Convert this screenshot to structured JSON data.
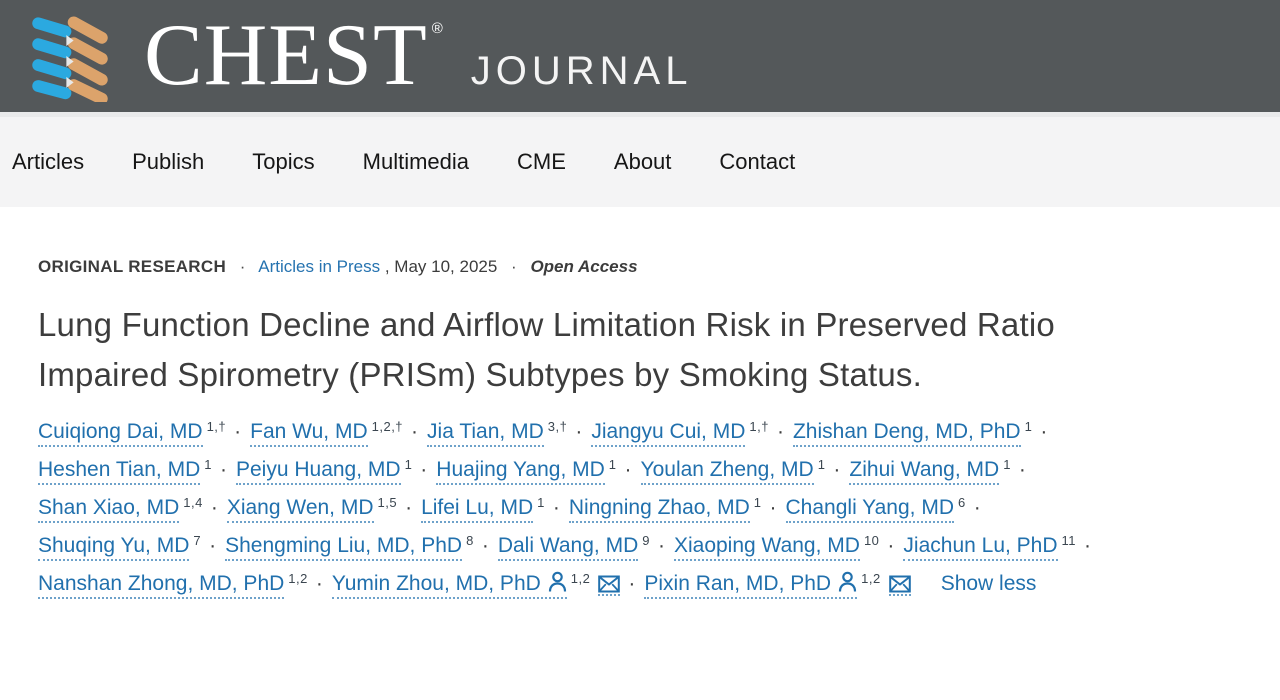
{
  "header": {
    "journal_name": "CHEST",
    "registered_mark": "®",
    "journal_suffix": "JOURNAL"
  },
  "nav": {
    "items": [
      "Articles",
      "Publish",
      "Topics",
      "Multimedia",
      "CME",
      "About",
      "Contact"
    ]
  },
  "article": {
    "meta": {
      "category": "ORIGINAL RESEARCH",
      "separator": "·",
      "in_press_link": "Articles in Press",
      "date_suffix": ", May 10, 2025",
      "access": "Open Access"
    },
    "title": "Lung Function Decline and Airflow Limitation Risk in Preserved Ratio Impaired Spirometry (PRISm) Subtypes by Smoking Status.",
    "author_separator": "·",
    "authors": [
      {
        "name": "Cuiqiong Dai, MD",
        "sup": "1,†"
      },
      {
        "name": "Fan Wu, MD",
        "sup": "1,2,†"
      },
      {
        "name": "Jia Tian, MD",
        "sup": "3,†"
      },
      {
        "name": "Jiangyu Cui, MD",
        "sup": "1,†"
      },
      {
        "name": "Zhishan Deng, MD, PhD",
        "sup": "1"
      },
      {
        "name": "Heshen Tian, MD",
        "sup": "1"
      },
      {
        "name": "Peiyu Huang, MD",
        "sup": "1"
      },
      {
        "name": "Huajing Yang, MD",
        "sup": "1"
      },
      {
        "name": "Youlan Zheng, MD",
        "sup": "1"
      },
      {
        "name": "Zihui Wang, MD",
        "sup": "1"
      },
      {
        "name": "Shan Xiao, MD",
        "sup": "1,4"
      },
      {
        "name": "Xiang Wen, MD",
        "sup": "1,5"
      },
      {
        "name": "Lifei Lu, MD",
        "sup": "1"
      },
      {
        "name": "Ningning Zhao, MD",
        "sup": "1"
      },
      {
        "name": "Changli Yang, MD",
        "sup": "6"
      },
      {
        "name": "Shuqing Yu, MD",
        "sup": "7"
      },
      {
        "name": "Shengming Liu, MD, PhD",
        "sup": "8"
      },
      {
        "name": "Dali Wang, MD",
        "sup": "9"
      },
      {
        "name": "Xiaoping Wang, MD",
        "sup": "10"
      },
      {
        "name": "Jiachun Lu, PhD",
        "sup": "11"
      },
      {
        "name": "Nanshan Zhong, MD, PhD",
        "sup": "1,2"
      },
      {
        "name": "Yumin Zhou, MD, PhD",
        "sup": "1,2",
        "person": true,
        "envelope": true
      },
      {
        "name": "Pixin Ran, MD, PhD",
        "sup": "1,2",
        "person": true,
        "envelope": true
      }
    ],
    "show_less": "Show less"
  },
  "icons": {
    "logo": "chest-ribcage-logo",
    "person": "person-outline-icon",
    "envelope": "envelope-icon"
  },
  "colors": {
    "header_bg": "#54585A",
    "nav_bg": "#F4F4F5",
    "link_blue": "#2170AD",
    "logo_blue": "#2BA9E0",
    "logo_tan": "#DCA36B",
    "text_dark": "#3D3D3D"
  }
}
